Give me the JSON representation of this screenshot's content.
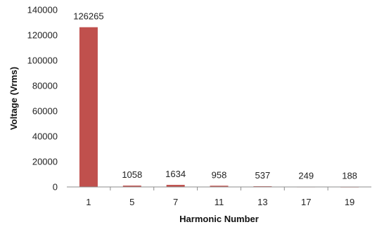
{
  "chart_data": {
    "type": "bar",
    "title": "",
    "xlabel": "Harmonic Number",
    "ylabel": "Voltage (Vrms)",
    "categories": [
      "1",
      "5",
      "7",
      "11",
      "13",
      "17",
      "19"
    ],
    "values": [
      126265,
      1058,
      1634,
      958,
      537,
      249,
      188
    ],
    "data_labels": [
      "126265",
      "1058",
      "1634",
      "958",
      "537",
      "249",
      "188"
    ],
    "yticks": [
      0,
      20000,
      40000,
      60000,
      80000,
      100000,
      120000,
      140000
    ],
    "ylim": [
      0,
      140000
    ],
    "grid": false,
    "legend": "none",
    "bar_color": "#c0504d"
  }
}
